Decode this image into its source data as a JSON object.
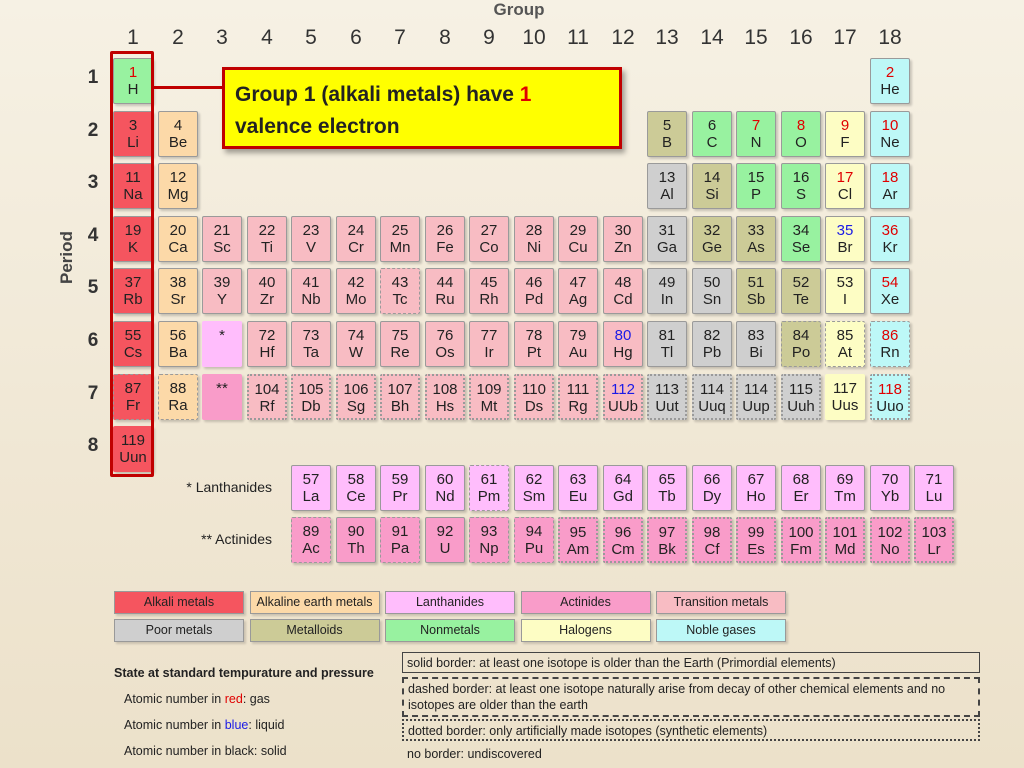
{
  "header": {
    "group_label": "Group",
    "period_label": "Period"
  },
  "group_numbers": [
    "1",
    "2",
    "3",
    "4",
    "5",
    "6",
    "7",
    "8",
    "9",
    "10",
    "11",
    "12",
    "13",
    "14",
    "15",
    "16",
    "17",
    "18"
  ],
  "period_numbers": [
    "1",
    "2",
    "3",
    "4",
    "5",
    "6",
    "7",
    "8"
  ],
  "callout": {
    "text_before": "Group 1 (alkali metals) have ",
    "highlight": "1",
    "text_after": " valence electron"
  },
  "elements": [
    {
      "num": "1",
      "sym": "H",
      "cat": "nonmetal",
      "state": "gas",
      "border": "solid"
    },
    {
      "num": "2",
      "sym": "He",
      "cat": "noble",
      "state": "gas",
      "border": "solid"
    },
    {
      "num": "3",
      "sym": "Li",
      "cat": "alkali",
      "state": "solid",
      "border": "solid"
    },
    {
      "num": "4",
      "sym": "Be",
      "cat": "alkaline",
      "state": "solid",
      "border": "solid"
    },
    {
      "num": "5",
      "sym": "B",
      "cat": "metalloid",
      "state": "solid",
      "border": "solid"
    },
    {
      "num": "6",
      "sym": "C",
      "cat": "nonmetal",
      "state": "solid",
      "border": "solid"
    },
    {
      "num": "7",
      "sym": "N",
      "cat": "nonmetal",
      "state": "gas",
      "border": "solid"
    },
    {
      "num": "8",
      "sym": "O",
      "cat": "nonmetal",
      "state": "gas",
      "border": "solid"
    },
    {
      "num": "9",
      "sym": "F",
      "cat": "halogen",
      "state": "gas",
      "border": "solid"
    },
    {
      "num": "10",
      "sym": "Ne",
      "cat": "noble",
      "state": "gas",
      "border": "solid"
    },
    {
      "num": "11",
      "sym": "Na",
      "cat": "alkali",
      "state": "solid",
      "border": "solid"
    },
    {
      "num": "12",
      "sym": "Mg",
      "cat": "alkaline",
      "state": "solid",
      "border": "solid"
    },
    {
      "num": "13",
      "sym": "Al",
      "cat": "poor",
      "state": "solid",
      "border": "solid"
    },
    {
      "num": "14",
      "sym": "Si",
      "cat": "metalloid",
      "state": "solid",
      "border": "solid"
    },
    {
      "num": "15",
      "sym": "P",
      "cat": "nonmetal",
      "state": "solid",
      "border": "solid"
    },
    {
      "num": "16",
      "sym": "S",
      "cat": "nonmetal",
      "state": "solid",
      "border": "solid"
    },
    {
      "num": "17",
      "sym": "Cl",
      "cat": "halogen",
      "state": "gas",
      "border": "solid"
    },
    {
      "num": "18",
      "sym": "Ar",
      "cat": "noble",
      "state": "gas",
      "border": "solid"
    },
    {
      "num": "19",
      "sym": "K",
      "cat": "alkali",
      "state": "solid",
      "border": "solid"
    },
    {
      "num": "20",
      "sym": "Ca",
      "cat": "alkaline",
      "state": "solid",
      "border": "solid"
    },
    {
      "num": "21",
      "sym": "Sc",
      "cat": "trans",
      "state": "solid",
      "border": "solid"
    },
    {
      "num": "22",
      "sym": "Ti",
      "cat": "trans",
      "state": "solid",
      "border": "solid"
    },
    {
      "num": "23",
      "sym": "V",
      "cat": "trans",
      "state": "solid",
      "border": "solid"
    },
    {
      "num": "24",
      "sym": "Cr",
      "cat": "trans",
      "state": "solid",
      "border": "solid"
    },
    {
      "num": "25",
      "sym": "Mn",
      "cat": "trans",
      "state": "solid",
      "border": "solid"
    },
    {
      "num": "26",
      "sym": "Fe",
      "cat": "trans",
      "state": "solid",
      "border": "solid"
    },
    {
      "num": "27",
      "sym": "Co",
      "cat": "trans",
      "state": "solid",
      "border": "solid"
    },
    {
      "num": "28",
      "sym": "Ni",
      "cat": "trans",
      "state": "solid",
      "border": "solid"
    },
    {
      "num": "29",
      "sym": "Cu",
      "cat": "trans",
      "state": "solid",
      "border": "solid"
    },
    {
      "num": "30",
      "sym": "Zn",
      "cat": "trans",
      "state": "solid",
      "border": "solid"
    },
    {
      "num": "31",
      "sym": "Ga",
      "cat": "poor",
      "state": "solid",
      "border": "solid"
    },
    {
      "num": "32",
      "sym": "Ge",
      "cat": "metalloid",
      "state": "solid",
      "border": "solid"
    },
    {
      "num": "33",
      "sym": "As",
      "cat": "metalloid",
      "state": "solid",
      "border": "solid"
    },
    {
      "num": "34",
      "sym": "Se",
      "cat": "nonmetal",
      "state": "solid",
      "border": "solid"
    },
    {
      "num": "35",
      "sym": "Br",
      "cat": "halogen",
      "state": "liquid",
      "border": "solid"
    },
    {
      "num": "36",
      "sym": "Kr",
      "cat": "noble",
      "state": "gas",
      "border": "solid"
    },
    {
      "num": "37",
      "sym": "Rb",
      "cat": "alkali",
      "state": "solid",
      "border": "solid"
    },
    {
      "num": "38",
      "sym": "Sr",
      "cat": "alkaline",
      "state": "solid",
      "border": "solid"
    },
    {
      "num": "39",
      "sym": "Y",
      "cat": "trans",
      "state": "solid",
      "border": "solid"
    },
    {
      "num": "40",
      "sym": "Zr",
      "cat": "trans",
      "state": "solid",
      "border": "solid"
    },
    {
      "num": "41",
      "sym": "Nb",
      "cat": "trans",
      "state": "solid",
      "border": "solid"
    },
    {
      "num": "42",
      "sym": "Mo",
      "cat": "trans",
      "state": "solid",
      "border": "solid"
    },
    {
      "num": "43",
      "sym": "Tc",
      "cat": "trans",
      "state": "solid",
      "border": "dashed"
    },
    {
      "num": "44",
      "sym": "Ru",
      "cat": "trans",
      "state": "solid",
      "border": "solid"
    },
    {
      "num": "45",
      "sym": "Rh",
      "cat": "trans",
      "state": "solid",
      "border": "solid"
    },
    {
      "num": "46",
      "sym": "Pd",
      "cat": "trans",
      "state": "solid",
      "border": "solid"
    },
    {
      "num": "47",
      "sym": "Ag",
      "cat": "trans",
      "state": "solid",
      "border": "solid"
    },
    {
      "num": "48",
      "sym": "Cd",
      "cat": "trans",
      "state": "solid",
      "border": "solid"
    },
    {
      "num": "49",
      "sym": "In",
      "cat": "poor",
      "state": "solid",
      "border": "solid"
    },
    {
      "num": "50",
      "sym": "Sn",
      "cat": "poor",
      "state": "solid",
      "border": "solid"
    },
    {
      "num": "51",
      "sym": "Sb",
      "cat": "metalloid",
      "state": "solid",
      "border": "solid"
    },
    {
      "num": "52",
      "sym": "Te",
      "cat": "metalloid",
      "state": "solid",
      "border": "solid"
    },
    {
      "num": "53",
      "sym": "I",
      "cat": "halogen",
      "state": "solid",
      "border": "solid"
    },
    {
      "num": "54",
      "sym": "Xe",
      "cat": "noble",
      "state": "gas",
      "border": "solid"
    },
    {
      "num": "55",
      "sym": "Cs",
      "cat": "alkali",
      "state": "solid",
      "border": "solid"
    },
    {
      "num": "56",
      "sym": "Ba",
      "cat": "alkaline",
      "state": "solid",
      "border": "solid"
    },
    {
      "num": "*",
      "sym": "",
      "cat": "lanth",
      "state": "solid",
      "border": "noborder"
    },
    {
      "num": "72",
      "sym": "Hf",
      "cat": "trans",
      "state": "solid",
      "border": "solid"
    },
    {
      "num": "73",
      "sym": "Ta",
      "cat": "trans",
      "state": "solid",
      "border": "solid"
    },
    {
      "num": "74",
      "sym": "W",
      "cat": "trans",
      "state": "solid",
      "border": "solid"
    },
    {
      "num": "75",
      "sym": "Re",
      "cat": "trans",
      "state": "solid",
      "border": "solid"
    },
    {
      "num": "76",
      "sym": "Os",
      "cat": "trans",
      "state": "solid",
      "border": "solid"
    },
    {
      "num": "77",
      "sym": "Ir",
      "cat": "trans",
      "state": "solid",
      "border": "solid"
    },
    {
      "num": "78",
      "sym": "Pt",
      "cat": "trans",
      "state": "solid",
      "border": "solid"
    },
    {
      "num": "79",
      "sym": "Au",
      "cat": "trans",
      "state": "solid",
      "border": "solid"
    },
    {
      "num": "80",
      "sym": "Hg",
      "cat": "trans",
      "state": "liquid",
      "border": "solid"
    },
    {
      "num": "81",
      "sym": "Tl",
      "cat": "poor",
      "state": "solid",
      "border": "solid"
    },
    {
      "num": "82",
      "sym": "Pb",
      "cat": "poor",
      "state": "solid",
      "border": "solid"
    },
    {
      "num": "83",
      "sym": "Bi",
      "cat": "poor",
      "state": "solid",
      "border": "solid"
    },
    {
      "num": "84",
      "sym": "Po",
      "cat": "metalloid",
      "state": "solid",
      "border": "dashed"
    },
    {
      "num": "85",
      "sym": "At",
      "cat": "halogen",
      "state": "solid",
      "border": "dashed"
    },
    {
      "num": "86",
      "sym": "Rn",
      "cat": "noble",
      "state": "gas",
      "border": "dashed"
    },
    {
      "num": "87",
      "sym": "Fr",
      "cat": "alkali",
      "state": "solid",
      "border": "dashed"
    },
    {
      "num": "88",
      "sym": "Ra",
      "cat": "alkaline",
      "state": "solid",
      "border": "dashed"
    },
    {
      "num": "**",
      "sym": "",
      "cat": "actin",
      "state": "solid",
      "border": "noborder"
    },
    {
      "num": "104",
      "sym": "Rf",
      "cat": "trans",
      "state": "solid",
      "border": "dotted"
    },
    {
      "num": "105",
      "sym": "Db",
      "cat": "trans",
      "state": "solid",
      "border": "dotted"
    },
    {
      "num": "106",
      "sym": "Sg",
      "cat": "trans",
      "state": "solid",
      "border": "dotted"
    },
    {
      "num": "107",
      "sym": "Bh",
      "cat": "trans",
      "state": "solid",
      "border": "dotted"
    },
    {
      "num": "108",
      "sym": "Hs",
      "cat": "trans",
      "state": "solid",
      "border": "dotted"
    },
    {
      "num": "109",
      "sym": "Mt",
      "cat": "trans",
      "state": "solid",
      "border": "dotted"
    },
    {
      "num": "110",
      "sym": "Ds",
      "cat": "trans",
      "state": "solid",
      "border": "dotted"
    },
    {
      "num": "111",
      "sym": "Rg",
      "cat": "trans",
      "state": "solid",
      "border": "dotted"
    },
    {
      "num": "112",
      "sym": "UUb",
      "cat": "trans",
      "state": "liquid",
      "border": "dotted"
    },
    {
      "num": "113",
      "sym": "Uut",
      "cat": "poor",
      "state": "solid",
      "border": "dotted"
    },
    {
      "num": "114",
      "sym": "Uuq",
      "cat": "poor",
      "state": "solid",
      "border": "dotted"
    },
    {
      "num": "114",
      "sym": "Uup",
      "cat": "poor",
      "state": "solid",
      "border": "dotted"
    },
    {
      "num": "115",
      "sym": "Uuh",
      "cat": "poor",
      "state": "solid",
      "border": "dotted"
    },
    {
      "num": "117",
      "sym": "Uus",
      "cat": "halogen",
      "state": "solid",
      "border": "noborder"
    },
    {
      "num": "118",
      "sym": "Uuo",
      "cat": "noble",
      "state": "gas",
      "border": "dotted"
    },
    {
      "num": "119",
      "sym": "Uun",
      "cat": "alkali",
      "state": "solid",
      "border": "noborder"
    }
  ],
  "lanthanides_label": "* Lanthanides",
  "actinides_label": "** Actinides",
  "lanthanides": [
    {
      "num": "57",
      "sym": "La",
      "border": "solid"
    },
    {
      "num": "58",
      "sym": "Ce",
      "border": "solid"
    },
    {
      "num": "59",
      "sym": "Pr",
      "border": "solid"
    },
    {
      "num": "60",
      "sym": "Nd",
      "border": "solid"
    },
    {
      "num": "61",
      "sym": "Pm",
      "border": "dashed"
    },
    {
      "num": "62",
      "sym": "Sm",
      "border": "solid"
    },
    {
      "num": "63",
      "sym": "Eu",
      "border": "solid"
    },
    {
      "num": "64",
      "sym": "Gd",
      "border": "solid"
    },
    {
      "num": "65",
      "sym": "Tb",
      "border": "solid"
    },
    {
      "num": "66",
      "sym": "Dy",
      "border": "solid"
    },
    {
      "num": "67",
      "sym": "Ho",
      "border": "solid"
    },
    {
      "num": "68",
      "sym": "Er",
      "border": "solid"
    },
    {
      "num": "69",
      "sym": "Tm",
      "border": "solid"
    },
    {
      "num": "70",
      "sym": "Yb",
      "border": "solid"
    },
    {
      "num": "71",
      "sym": "Lu",
      "border": "solid"
    }
  ],
  "actinides": [
    {
      "num": "89",
      "sym": "Ac",
      "border": "dashed"
    },
    {
      "num": "90",
      "sym": "Th",
      "border": "solid"
    },
    {
      "num": "91",
      "sym": "Pa",
      "border": "dashed"
    },
    {
      "num": "92",
      "sym": "U",
      "border": "solid"
    },
    {
      "num": "93",
      "sym": "Np",
      "border": "dashed"
    },
    {
      "num": "94",
      "sym": "Pu",
      "border": "dashed"
    },
    {
      "num": "95",
      "sym": "Am",
      "border": "dotted"
    },
    {
      "num": "96",
      "sym": "Cm",
      "border": "dotted"
    },
    {
      "num": "97",
      "sym": "Bk",
      "border": "dotted"
    },
    {
      "num": "98",
      "sym": "Cf",
      "border": "dotted"
    },
    {
      "num": "99",
      "sym": "Es",
      "border": "dotted"
    },
    {
      "num": "100",
      "sym": "Fm",
      "border": "dotted"
    },
    {
      "num": "101",
      "sym": "Md",
      "border": "dotted"
    },
    {
      "num": "102",
      "sym": "No",
      "border": "dotted"
    },
    {
      "num": "103",
      "sym": "Lr",
      "border": "dotted"
    }
  ],
  "legend": [
    {
      "label": "Alkali metals",
      "cat": "alkali"
    },
    {
      "label": "Alkaline earth metals",
      "cat": "alkaline"
    },
    {
      "label": "Lanthanides",
      "cat": "lanth"
    },
    {
      "label": "Actinides",
      "cat": "actin"
    },
    {
      "label": "Transition metals",
      "cat": "trans"
    },
    {
      "label": "Poor metals",
      "cat": "poor"
    },
    {
      "label": "Metalloids",
      "cat": "metalloid"
    },
    {
      "label": "Nonmetals",
      "cat": "nonmetal"
    },
    {
      "label": "Halogens",
      "cat": "halogen"
    },
    {
      "label": "Noble gases",
      "cat": "noble"
    }
  ],
  "state_legend": {
    "title": "State at standard tempurature and pressure",
    "red_prefix": "Atomic number in ",
    "red_word": "red",
    "red_suffix": ": gas",
    "blue_prefix": "Atomic number in ",
    "blue_word": "blue",
    "blue_suffix": ": liquid",
    "black_text": "Atomic number in black: solid"
  },
  "border_legend": {
    "solid": "solid border: at least one isotope is older than the Earth (Primordial elements)",
    "dashed": "dashed border: at least one isotope naturally arise from decay of other chemical elements and no isotopes are older than the earth",
    "dotted": "dotted border: only artificially made isotopes (synthetic elements)",
    "none": "no border: undiscovered"
  },
  "colors": {
    "highlight": "#c00000",
    "callout_bg": "#ffff00",
    "gas_text": "#e00000",
    "liquid_text": "#1b1be6"
  }
}
